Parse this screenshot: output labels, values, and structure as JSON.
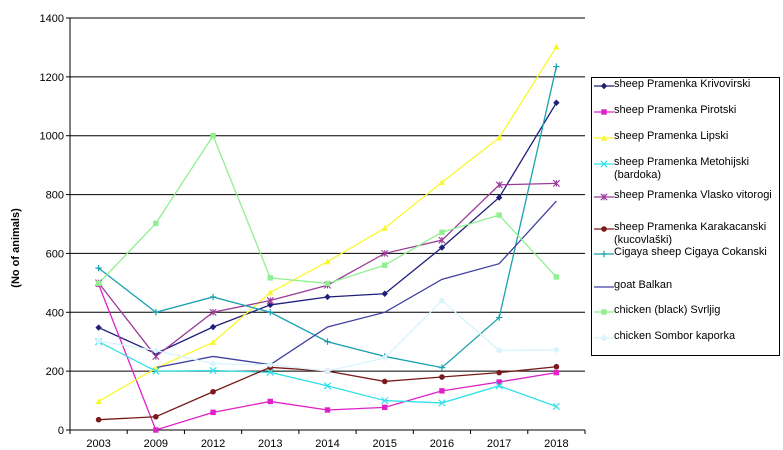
{
  "chart_data": {
    "type": "line",
    "title": "",
    "xlabel": "",
    "ylabel": "(No of animals)",
    "ylim": [
      0,
      1400
    ],
    "yticks": [
      0,
      200,
      400,
      600,
      800,
      1000,
      1200,
      1400
    ],
    "categories": [
      "2003",
      "2009",
      "2012",
      "2013",
      "2014",
      "2015",
      "2016",
      "2017",
      "2018"
    ],
    "grid": "horizontal",
    "legend_position": "right",
    "series": [
      {
        "name": "sheep Pramenka Krivovirski",
        "color": "#1f1f7a",
        "marker": "diamond",
        "values": [
          348,
          260,
          350,
          425,
          452,
          463,
          620,
          790,
          1112
        ]
      },
      {
        "name": "sheep Pramenka Pirotski",
        "color": "#e020c8",
        "marker": "square",
        "values": [
          495,
          0,
          60,
          97,
          68,
          77,
          133,
          163,
          195
        ]
      },
      {
        "name": "sheep Pramenka Lipski",
        "color": "#f8f830",
        "marker": "triangle",
        "values": [
          97,
          210,
          298,
          467,
          572,
          686,
          842,
          993,
          1302
        ]
      },
      {
        "name": "sheep Pramenka Metohijski (bardoka)",
        "color": "#30e0e8",
        "marker": "x",
        "values": [
          300,
          200,
          202,
          196,
          150,
          100,
          92,
          150,
          80
        ]
      },
      {
        "name": "sheep Pramenka Vlasko vitorogi",
        "color": "#9a3a9a",
        "marker": "star",
        "values": [
          500,
          250,
          400,
          440,
          492,
          600,
          645,
          833,
          838
        ]
      },
      {
        "name": "sheep Pramenka Karakacanski   (kucovlaški)",
        "color": "#7a1a1a",
        "marker": "circle",
        "values": [
          35,
          45,
          130,
          213,
          200,
          165,
          180,
          195,
          215
        ]
      },
      {
        "name": "Cigaya sheep Cigaya Cokanski",
        "color": "#1aa0b0",
        "marker": "plus",
        "values": [
          550,
          400,
          452,
          400,
          300,
          250,
          212,
          382,
          1235
        ]
      },
      {
        "name": "goat Balkan",
        "color": "#4040a0",
        "marker": "none",
        "values": [
          null,
          212,
          250,
          222,
          350,
          400,
          512,
          565,
          778
        ]
      },
      {
        "name": "chicken (black) Svrljig",
        "color": "#90f090",
        "marker": "square",
        "values": [
          498,
          702,
          1000,
          517,
          498,
          560,
          672,
          730,
          520
        ]
      },
      {
        "name": "chicken Sombor kaporka",
        "color": "#d8f4fc",
        "marker": "circle",
        "values": [
          302,
          270,
          225,
          222,
          200,
          245,
          440,
          270,
          272
        ]
      }
    ]
  }
}
